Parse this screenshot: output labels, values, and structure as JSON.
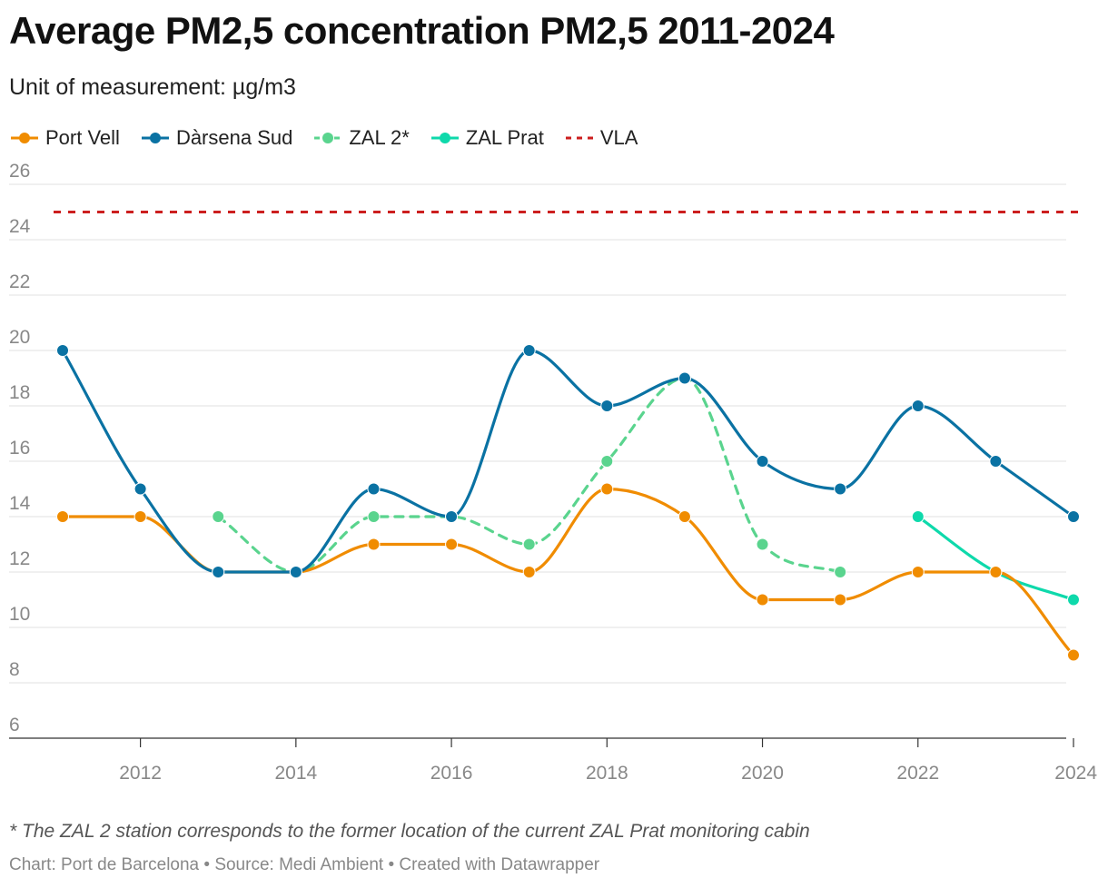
{
  "chart_data": {
    "type": "line",
    "title": "Average PM2,5 concentration PM2,5 2011-2024",
    "subtitle": "Unit of measurement: µg/m3",
    "x": [
      2011,
      2012,
      2013,
      2014,
      2015,
      2016,
      2017,
      2018,
      2019,
      2020,
      2021,
      2022,
      2023,
      2024
    ],
    "xlim": [
      2011,
      2024
    ],
    "ylim": [
      6,
      26
    ],
    "xticks": [
      2012,
      2014,
      2016,
      2018,
      2020,
      2022,
      2024
    ],
    "yticks": [
      6,
      8,
      10,
      12,
      14,
      16,
      18,
      20,
      22,
      24,
      26
    ],
    "grid": true,
    "legend_position": "top-left",
    "series": [
      {
        "name": "Port Vell",
        "color": "#f08c00",
        "style": "solid",
        "markers": true,
        "x": [
          2011,
          2012,
          2013,
          2014,
          2015,
          2016,
          2017,
          2018,
          2019,
          2020,
          2021,
          2022,
          2023,
          2024
        ],
        "values": [
          14,
          14,
          12,
          12,
          13,
          13,
          12,
          15,
          14,
          11,
          11,
          12,
          12,
          9
        ]
      },
      {
        "name": "Dàrsena Sud",
        "color": "#0a72a3",
        "style": "solid",
        "markers": true,
        "x": [
          2011,
          2012,
          2013,
          2014,
          2015,
          2016,
          2017,
          2018,
          2019,
          2020,
          2021,
          2022,
          2023,
          2024
        ],
        "values": [
          20,
          15,
          12,
          12,
          15,
          14,
          20,
          18,
          19,
          16,
          15,
          18,
          16,
          14
        ]
      },
      {
        "name": "ZAL 2*",
        "color": "#5ad48e",
        "style": "dashed",
        "markers": true,
        "x": [
          2013,
          2014,
          2015,
          2016,
          2017,
          2018,
          2019,
          2020,
          2021
        ],
        "values": [
          14,
          12,
          14,
          14,
          13,
          16,
          19,
          13,
          12
        ]
      },
      {
        "name": "ZAL Prat",
        "color": "#0ed9ab",
        "style": "solid",
        "markers": true,
        "x": [
          2022,
          2023,
          2024
        ],
        "values": [
          14,
          12,
          11
        ]
      },
      {
        "name": "VLA",
        "color": "#cc1f1f",
        "style": "dashed",
        "markers": false,
        "x": [
          2011,
          2024
        ],
        "values": [
          25,
          25
        ]
      }
    ]
  },
  "note": "* The ZAL 2 station corresponds to the former location of the current ZAL Prat monitoring cabin",
  "footer": "Chart: Port de Barcelona • Source: Medi Ambient • Created with Datawrapper"
}
